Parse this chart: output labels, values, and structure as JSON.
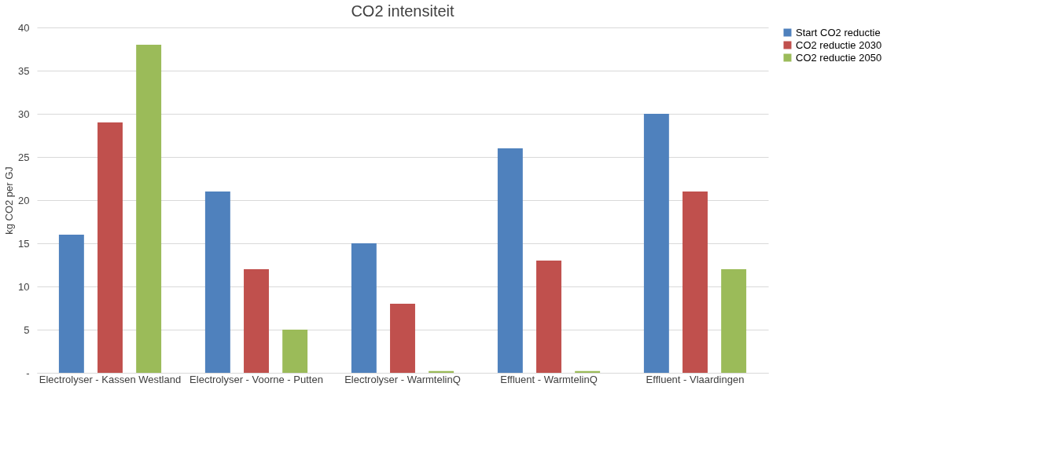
{
  "chart_data": {
    "type": "bar",
    "title": "CO2 intensiteit",
    "ylabel": "kg CO2 per GJ",
    "categories": [
      "Electrolyser - Kassen Westland",
      "Electrolyser - Voorne - Putten",
      "Electrolyser - WarmtelinQ",
      "Effluent - WarmtelinQ",
      "Effluent - Vlaardingen"
    ],
    "series": [
      {
        "name": "Start CO2 reductie",
        "color": "#4f81bd",
        "values": [
          16,
          21,
          15,
          26,
          30
        ]
      },
      {
        "name": "CO2 reductie 2030",
        "color": "#c0504d",
        "values": [
          29,
          12,
          8,
          13,
          21
        ]
      },
      {
        "name": "CO2 reductie 2050",
        "color": "#9bbb59",
        "values": [
          38,
          5,
          0.2,
          0.2,
          12
        ]
      }
    ],
    "ylim": [
      0,
      40
    ],
    "yticks": [
      {
        "value": 0,
        "label": "-"
      },
      5,
      10,
      15,
      20,
      25,
      30,
      35,
      40
    ],
    "grid": "y",
    "legend": "right"
  }
}
